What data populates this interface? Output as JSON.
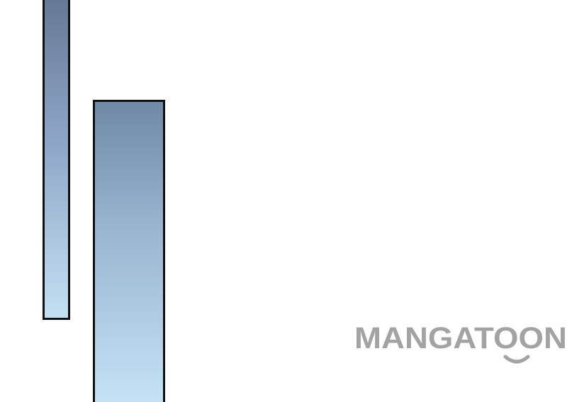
{
  "watermark": {
    "text": "MANGATOON",
    "color": "#a3a3a3"
  },
  "panels": {
    "left_gradient": [
      "#667996",
      "#c4e0f3"
    ],
    "right_gradient": [
      "#6f89a6",
      "#c6e4f7"
    ],
    "border_color": "#111111"
  }
}
